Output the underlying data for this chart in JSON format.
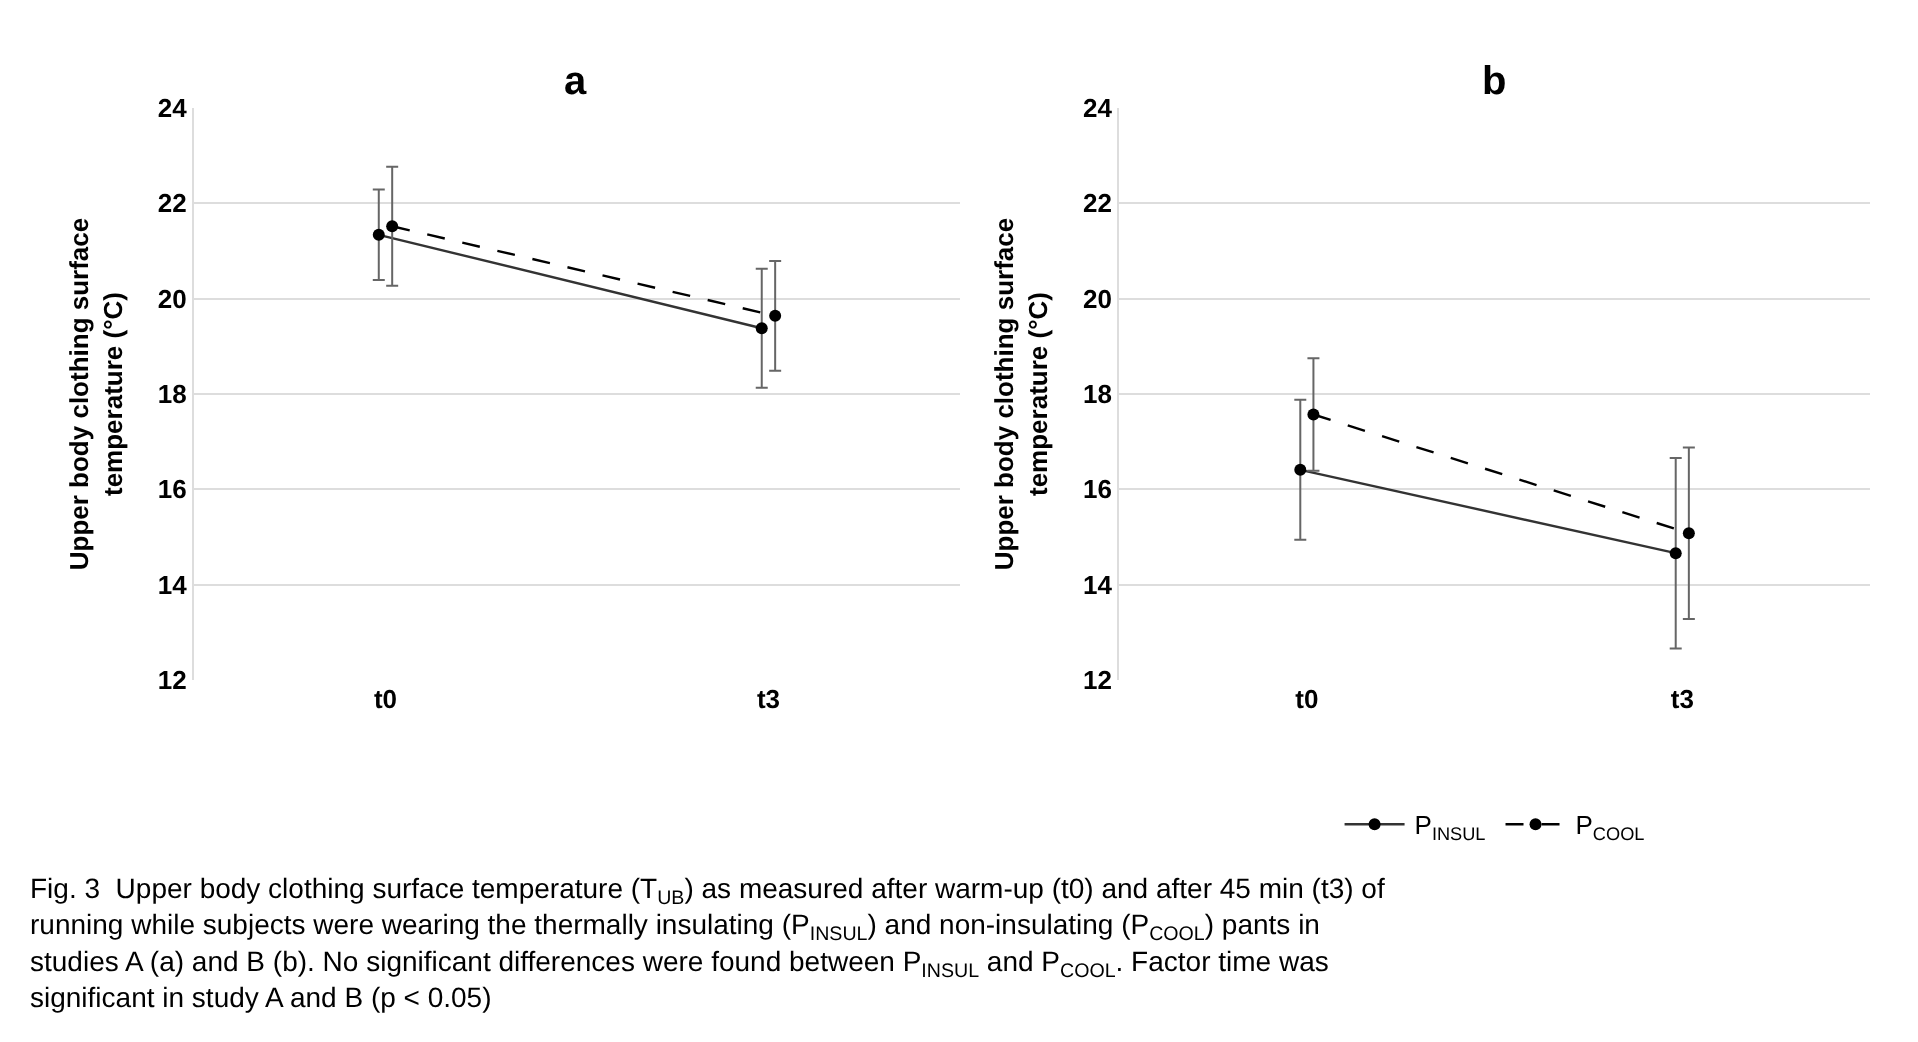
{
  "chart_data": [
    {
      "type": "line",
      "title": "a",
      "ylabel": "Upper body clothing surface temperature (°C)",
      "categories": [
        "t0",
        "t3"
      ],
      "ylim": [
        12,
        24
      ],
      "yticks": [
        12,
        14,
        16,
        18,
        20,
        22,
        24
      ],
      "grid": "y",
      "legend": "bottom",
      "marker": "circle",
      "series": [
        {
          "name": "P$_{INSUL}$",
          "color": "#333333",
          "line_style": "solid",
          "values": [
            21.34,
            19.38
          ],
          "errors": [
            0.95,
            1.25
          ]
        },
        {
          "name": "P$_{COOL}$",
          "color": "#000000",
          "line_style": "dashed",
          "values": [
            21.52,
            19.64
          ],
          "errors": [
            1.25,
            1.15
          ]
        }
      ]
    },
    {
      "type": "line",
      "title": "b",
      "ylabel": "Upper body clothing surface temperature (°C)",
      "categories": [
        "t0",
        "t3"
      ],
      "ylim": [
        12,
        24
      ],
      "yticks": [
        12,
        14,
        16,
        18,
        20,
        22,
        24
      ],
      "grid": "y",
      "legend": "bottom",
      "marker": "circle",
      "series": [
        {
          "name": "P$_{INSUL}$",
          "color": "#333333",
          "line_style": "solid",
          "values": [
            16.41,
            14.66
          ],
          "errors": [
            1.47,
            2.0
          ]
        },
        {
          "name": "P$_{COOL}$",
          "color": "#000000",
          "line_style": "dashed",
          "values": [
            17.57,
            15.08
          ],
          "errors": [
            1.18,
            1.8
          ]
        }
      ],
      "annotations": [
        "Fig. 3  Upper body clothing surface temperature (T$_{UB}$) as measured after warm-up (t0) and after 45 min (t3) of running while subjects were wearing the thermally insulating (P$_{INSUL}$) and non-insulating (P$_{COOL}$) pants in studies A (a) and B (b). No significant differences were found between P$_{INSUL}$ and P$_{COOL}$. Factor time was significant in study A and B (p < 0.05)"
      ]
    }
  ]
}
